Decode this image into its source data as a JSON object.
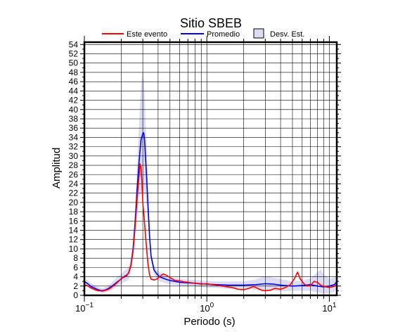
{
  "chart_data": {
    "type": "line",
    "title": "Sitio SBEB",
    "xlabel": "Periodo (s)",
    "ylabel": "Amplitud",
    "xscale": "log",
    "xlim": [
      0.1,
      11.5
    ],
    "ylim": [
      0,
      54.5
    ],
    "grid": true,
    "legend_position": "top",
    "x_tick_labels": [
      {
        "value": 0.1,
        "base": "10",
        "exp": "−1"
      },
      {
        "value": 1,
        "base": "10",
        "exp": "0"
      },
      {
        "value": 10,
        "base": "10",
        "exp": "1"
      }
    ],
    "y_ticks": [
      0,
      2,
      4,
      6,
      8,
      10,
      12,
      14,
      16,
      18,
      20,
      22,
      24,
      26,
      28,
      30,
      32,
      34,
      36,
      38,
      40,
      42,
      44,
      46,
      48,
      50,
      52,
      54
    ],
    "legend": [
      {
        "label": "Este evento",
        "kind": "line",
        "color": "#ff0000"
      },
      {
        "label": "Promedio",
        "kind": "line",
        "color": "#0000ff"
      },
      {
        "label": "Desv. Est.",
        "kind": "band",
        "color": "#dcdcf4"
      }
    ],
    "series": [
      {
        "name": "Este evento",
        "color": "#ff0000",
        "x": [
          0.1,
          0.105,
          0.11,
          0.115,
          0.12,
          0.125,
          0.13,
          0.135,
          0.14,
          0.15,
          0.16,
          0.17,
          0.18,
          0.19,
          0.2,
          0.21,
          0.22,
          0.23,
          0.24,
          0.25,
          0.26,
          0.27,
          0.28,
          0.285,
          0.29,
          0.295,
          0.3,
          0.31,
          0.32,
          0.33,
          0.34,
          0.35,
          0.37,
          0.39,
          0.41,
          0.44,
          0.47,
          0.5,
          0.55,
          0.6,
          0.65,
          0.7,
          0.8,
          0.9,
          1.0,
          1.1,
          1.2,
          1.4,
          1.6,
          1.8,
          2.0,
          2.2,
          2.4,
          2.6,
          2.8,
          3.0,
          3.3,
          3.6,
          4.0,
          4.4,
          4.8,
          5.2,
          5.5,
          5.8,
          6.2,
          6.6,
          7.0,
          7.5,
          8.0,
          8.5,
          9.0,
          10.0,
          11.0,
          11.5
        ],
        "y": [
          2.3,
          2.1,
          1.8,
          1.5,
          1.3,
          1.1,
          1.0,
          1.0,
          0.9,
          1.1,
          1.4,
          1.9,
          2.4,
          3.0,
          3.6,
          3.9,
          4.1,
          4.9,
          6.5,
          9.5,
          15.0,
          21.0,
          26.0,
          28.3,
          27.5,
          24.5,
          20.0,
          15.5,
          11.0,
          7.0,
          4.5,
          3.5,
          3.3,
          3.5,
          4.0,
          4.6,
          4.3,
          3.8,
          3.2,
          3.1,
          2.9,
          2.8,
          2.6,
          2.4,
          2.5,
          2.3,
          2.2,
          1.9,
          1.7,
          1.3,
          1.2,
          1.5,
          1.9,
          1.5,
          1.1,
          1.0,
          1.1,
          1.5,
          1.3,
          1.7,
          2.3,
          3.6,
          5.0,
          3.5,
          2.5,
          2.0,
          2.1,
          3.0,
          2.8,
          2.2,
          1.9,
          1.7,
          1.9,
          2.4
        ]
      },
      {
        "name": "Promedio",
        "color": "#0000ff",
        "x": [
          0.1,
          0.105,
          0.11,
          0.115,
          0.12,
          0.125,
          0.13,
          0.14,
          0.15,
          0.16,
          0.17,
          0.18,
          0.19,
          0.2,
          0.21,
          0.22,
          0.23,
          0.24,
          0.25,
          0.26,
          0.27,
          0.28,
          0.29,
          0.3,
          0.305,
          0.31,
          0.32,
          0.33,
          0.34,
          0.35,
          0.37,
          0.39,
          0.41,
          0.44,
          0.47,
          0.5,
          0.55,
          0.6,
          0.7,
          0.8,
          0.9,
          1.0,
          1.2,
          1.5,
          2.0,
          2.5,
          3.0,
          3.5,
          4.0,
          5.0,
          6.0,
          7.0,
          8.0,
          9.0,
          10.0,
          11.0,
          11.5
        ],
        "y": [
          3.0,
          2.6,
          2.2,
          1.8,
          1.6,
          1.4,
          1.2,
          1.0,
          1.2,
          1.6,
          2.1,
          2.6,
          3.1,
          3.5,
          4.0,
          4.3,
          4.8,
          6.5,
          10.0,
          16.0,
          23.0,
          29.0,
          33.5,
          34.8,
          35.0,
          33.5,
          27.0,
          20.0,
          13.0,
          8.5,
          5.5,
          4.6,
          4.0,
          3.7,
          3.4,
          3.2,
          3.0,
          2.8,
          2.7,
          2.6,
          2.5,
          2.4,
          2.3,
          2.2,
          2.2,
          2.3,
          2.5,
          2.4,
          2.2,
          2.0,
          2.1,
          2.3,
          2.0,
          1.8,
          2.0,
          2.3,
          3.0
        ]
      }
    ],
    "std_band": {
      "name": "Desv. Est.",
      "color": "#dcdcf4",
      "x": [
        0.1,
        0.11,
        0.12,
        0.13,
        0.14,
        0.15,
        0.16,
        0.17,
        0.18,
        0.19,
        0.2,
        0.21,
        0.22,
        0.23,
        0.24,
        0.25,
        0.26,
        0.27,
        0.28,
        0.29,
        0.3,
        0.31,
        0.32,
        0.33,
        0.34,
        0.35,
        0.37,
        0.39,
        0.41,
        0.44,
        0.47,
        0.5,
        0.55,
        0.6,
        0.7,
        0.8,
        0.9,
        1.0,
        1.2,
        1.5,
        2.0,
        2.5,
        3.0,
        3.5,
        4.0,
        5.0,
        6.0,
        7.0,
        8.0,
        8.5,
        9.0,
        10.0,
        11.0,
        11.5
      ],
      "upper": [
        3.8,
        2.9,
        2.2,
        1.8,
        1.5,
        1.8,
        2.3,
        2.9,
        3.5,
        4.1,
        4.6,
        5.2,
        5.6,
        6.2,
        8.0,
        12.0,
        19.0,
        28.0,
        37.0,
        45.0,
        48.5,
        44.0,
        34.0,
        24.0,
        15.0,
        9.5,
        6.5,
        5.5,
        5.0,
        4.6,
        4.2,
        4.0,
        3.7,
        3.5,
        3.4,
        3.3,
        3.2,
        3.1,
        3.0,
        3.0,
        3.0,
        3.4,
        4.2,
        3.8,
        3.5,
        3.0,
        3.2,
        3.6,
        5.0,
        5.6,
        4.5,
        3.6,
        3.8,
        4.5
      ],
      "lower": [
        2.2,
        1.5,
        1.0,
        0.7,
        0.5,
        0.6,
        0.9,
        1.3,
        1.7,
        2.1,
        2.4,
        2.8,
        3.0,
        3.4,
        5.0,
        8.0,
        13.0,
        18.0,
        21.0,
        22.0,
        21.0,
        23.0,
        20.0,
        16.0,
        11.0,
        7.5,
        4.5,
        3.7,
        3.0,
        2.8,
        2.6,
        2.4,
        2.3,
        2.1,
        2.0,
        1.9,
        1.8,
        1.7,
        1.6,
        1.4,
        1.4,
        1.2,
        0.8,
        1.0,
        0.9,
        1.0,
        1.0,
        1.0,
        0.6,
        0.5,
        0.5,
        0.4,
        0.8,
        1.5
      ]
    }
  }
}
